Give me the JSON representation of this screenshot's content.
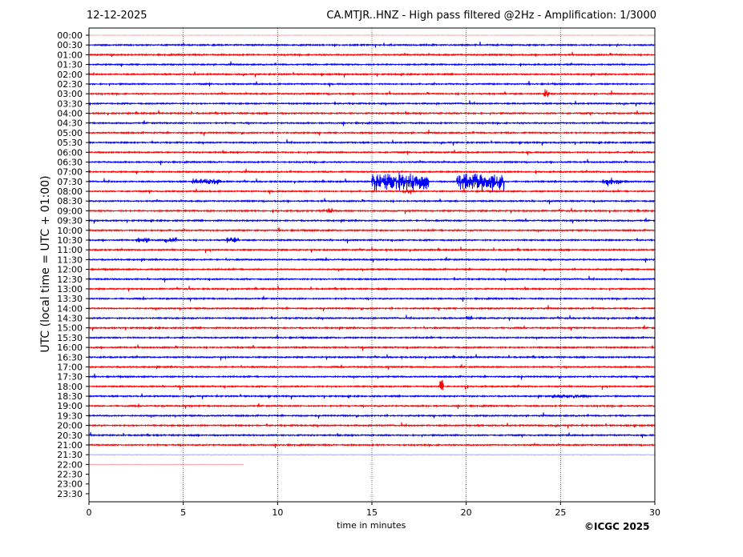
{
  "header": {
    "date": "12-12-2025",
    "title": "CA.MTJR..HNZ - High pass filtered @2Hz - Amplification: 1/3000"
  },
  "footer": {
    "copyright": "©ICGC 2025"
  },
  "chart_data": {
    "type": "line",
    "title": "CA.MTJR..HNZ - High pass filtered @2Hz - Amplification: 1/3000",
    "xlabel": "time in minutes",
    "ylabel": "UTC (local time = UTC + 01:00)",
    "xlim": [
      0,
      30
    ],
    "xticks": [
      "0",
      "5",
      "10",
      "15",
      "20",
      "25",
      "30"
    ],
    "xtick_values": [
      0,
      5,
      10,
      15,
      20,
      25,
      30
    ],
    "grid": "vertical dotted at x ticks",
    "series_colors": [
      "#ff0000",
      "#0000ff"
    ],
    "rows": [
      "00:00",
      "00:30",
      "01:00",
      "01:30",
      "02:00",
      "02:30",
      "03:00",
      "03:30",
      "04:00",
      "04:30",
      "05:00",
      "05:30",
      "06:00",
      "06:30",
      "07:00",
      "07:30",
      "08:00",
      "08:30",
      "09:00",
      "09:30",
      "10:00",
      "10:30",
      "11:00",
      "11:30",
      "12:00",
      "12:30",
      "13:00",
      "13:30",
      "14:00",
      "14:30",
      "15:00",
      "15:30",
      "16:00",
      "16:30",
      "17:00",
      "17:30",
      "18:00",
      "18:30",
      "19:00",
      "19:30",
      "20:00",
      "20:30",
      "21:00",
      "21:30",
      "22:00",
      "22:30",
      "23:00",
      "23:30"
    ],
    "data_end": {
      "row": "22:00",
      "minute": 8.2
    },
    "events": [
      {
        "row": "07:30",
        "start": 5.5,
        "end": 7.0,
        "amplitude": 0.35
      },
      {
        "row": "07:30",
        "start": 15.0,
        "end": 18.0,
        "amplitude": 0.95
      },
      {
        "row": "07:30",
        "start": 19.5,
        "end": 22.0,
        "amplitude": 1.0
      },
      {
        "row": "07:30",
        "start": 27.2,
        "end": 28.2,
        "amplitude": 0.45
      },
      {
        "row": "03:00",
        "start": 24.1,
        "end": 24.4,
        "amplitude": 0.45
      },
      {
        "row": "18:00",
        "start": 18.6,
        "end": 18.8,
        "amplitude": 0.7
      },
      {
        "row": "14:30",
        "start": 20.0,
        "end": 20.3,
        "amplitude": 0.35
      },
      {
        "row": "10:30",
        "start": 2.5,
        "end": 3.2,
        "amplitude": 0.3
      },
      {
        "row": "10:30",
        "start": 4.0,
        "end": 4.6,
        "amplitude": 0.3
      },
      {
        "row": "10:30",
        "start": 7.3,
        "end": 7.8,
        "amplitude": 0.3
      },
      {
        "row": "08:00",
        "start": 16.6,
        "end": 17.1,
        "amplitude": 0.3
      },
      {
        "row": "09:00",
        "start": 12.6,
        "end": 12.9,
        "amplitude": 0.35
      },
      {
        "row": "18:30",
        "start": 24.5,
        "end": 26.5,
        "amplitude": 0.2
      }
    ]
  }
}
